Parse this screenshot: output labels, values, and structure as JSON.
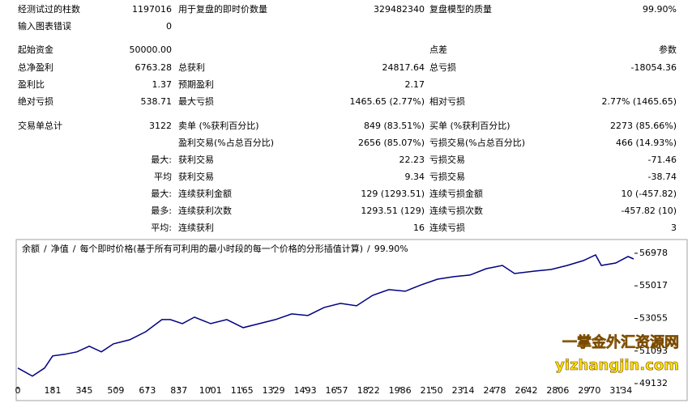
{
  "report": {
    "rows": [
      {
        "l1": "经测试过的柱数",
        "v1": "1197016",
        "l2": "用于复盘的即时价数量",
        "v2": "329482340",
        "l3": "复盘模型的质量",
        "v3": "99.90%"
      },
      {
        "l1": "输入图表错误",
        "v1": "0"
      },
      {
        "l1": "起始资金",
        "v1": "50000.00",
        "l3": "点差",
        "v3": "参数"
      },
      {
        "l1": "总净盈利",
        "v1": "6763.28",
        "l2": "总获利",
        "v2": "24817.64",
        "l3": "总亏损",
        "v3": "-18054.36"
      },
      {
        "l1": "盈利比",
        "v1": "1.37",
        "l2": "预期盈利",
        "v2": "2.17"
      },
      {
        "l1": "绝对亏损",
        "v1": "538.71",
        "l2": "最大亏损",
        "v2": "1465.65 (2.77%)",
        "l3": "相对亏损",
        "v3": "2.77% (1465.65)"
      },
      {
        "l1": "交易单总计",
        "v1": "3122",
        "l2": "卖单 (%获利百分比)",
        "v2": "849 (83.51%)",
        "l3": "买单 (%获利百分比)",
        "v3": "2273 (85.66%)"
      },
      {
        "l2": "盈利交易(%占总百分比)",
        "v2": "2656 (85.07%)",
        "l3": "亏损交易(%占总百分比)",
        "v3": "466 (14.93%)"
      },
      {
        "v1": "最大:",
        "l2": "获利交易",
        "v2": "22.23",
        "l3": "亏损交易",
        "v3": "-71.46"
      },
      {
        "v1": "平均",
        "l2": "获利交易",
        "v2": "9.34",
        "l3": "亏损交易",
        "v3": "-38.74"
      },
      {
        "v1": "最大:",
        "l2": "连续获利金额",
        "v2": "129 (1293.51)",
        "l3": "连续亏损金额",
        "v3": "10 (-457.82)"
      },
      {
        "v1": "最多:",
        "l2": "连续获利次数",
        "v2": "1293.51 (129)",
        "l3": "连续亏损次数",
        "v3": "-457.82 (10)"
      },
      {
        "v1": "平均:",
        "l2": "连续获利",
        "v2": "16",
        "l3": "连续亏损",
        "v3": "3"
      }
    ]
  },
  "chart_data": {
    "type": "line",
    "separator": "/",
    "equity_label": "净值",
    "equity_color": "#008000",
    "model": "每个即时价格(基于所有可利用的最小时段的每一个价格的分形插值计算)",
    "quality": "99.90%",
    "x": [
      0,
      76,
      139,
      181,
      244,
      307,
      371,
      434,
      497,
      581,
      665,
      749,
      792,
      855,
      918,
      1002,
      1086,
      1171,
      1255,
      1339,
      1423,
      1507,
      1592,
      1676,
      1760,
      1844,
      1928,
      2013,
      2097,
      2181,
      2265,
      2349,
      2434,
      2518,
      2581,
      2686,
      2771,
      2855,
      2939,
      3002,
      3032,
      3107,
      3171,
      3200
    ],
    "series": [
      {
        "name": "余额",
        "color": "#000080",
        "values": [
          50067,
          49580,
          50067,
          50797,
          50894,
          51040,
          51381,
          51040,
          51527,
          51770,
          52257,
          52987,
          52987,
          52744,
          53133,
          52744,
          52987,
          52500,
          52744,
          52987,
          53328,
          53231,
          53717,
          53960,
          53814,
          54447,
          54788,
          54690,
          55080,
          55420,
          55567,
          55664,
          56053,
          56248,
          55761,
          55907,
          56005,
          56248,
          56540,
          56881,
          56248,
          56394,
          56783,
          56637
        ]
      }
    ],
    "xlim": [
      0,
      3200
    ],
    "xticks": [
      0,
      181,
      345,
      509,
      673,
      837,
      1001,
      1165,
      1329,
      1493,
      1657,
      1822,
      1986,
      2150,
      2314,
      2478,
      2642,
      2806,
      2970,
      3134
    ],
    "ylim": [
      48986,
      57708
    ],
    "yticks": [
      49132,
      51093,
      53055,
      55017,
      56978
    ],
    "watermark": [
      "一掌金外汇资源网",
      "yizhangjin.com"
    ]
  }
}
